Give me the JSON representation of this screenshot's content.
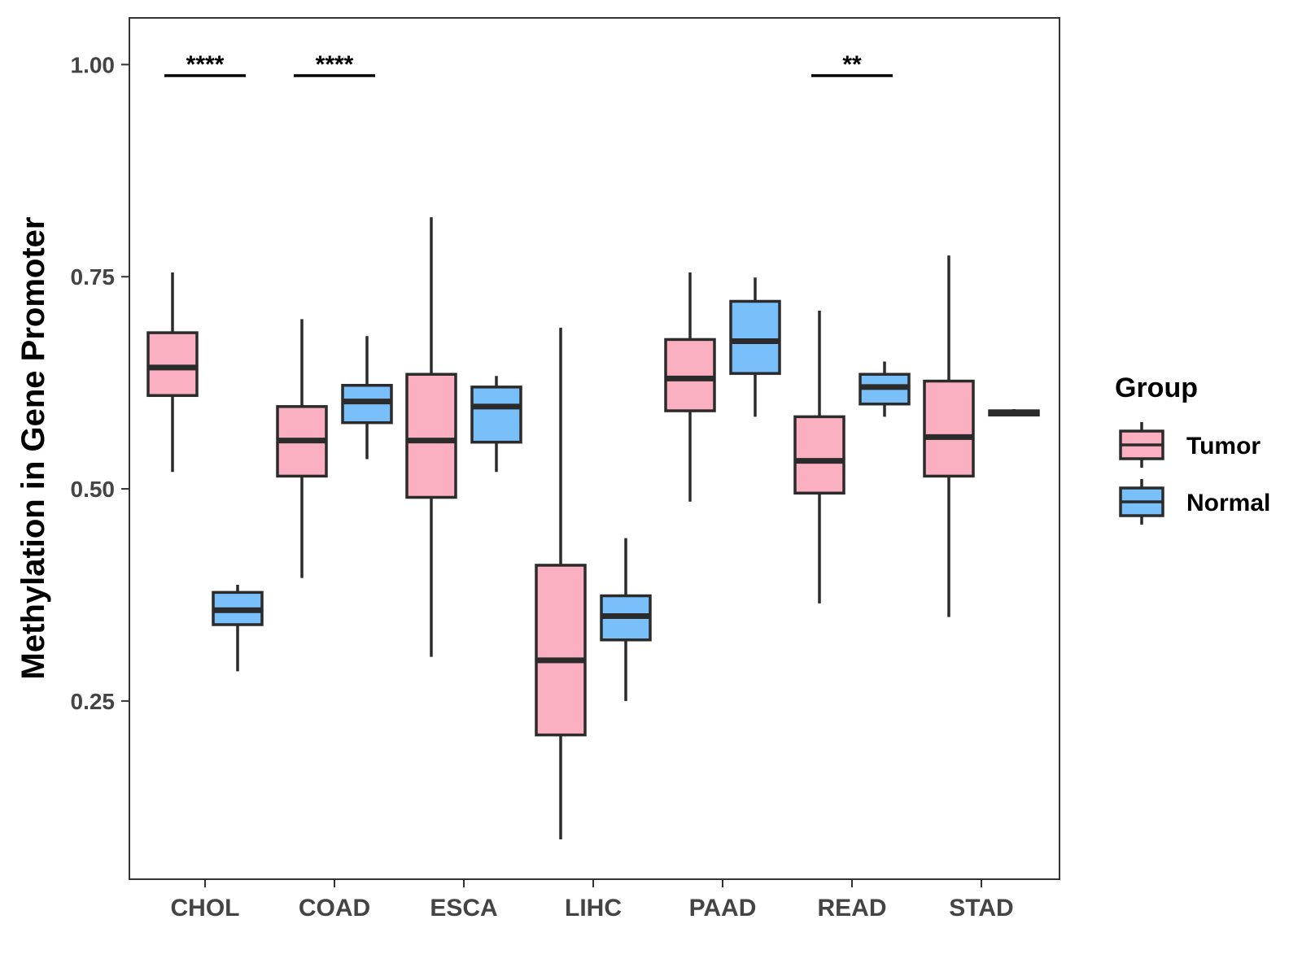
{
  "chart_data": {
    "type": "boxplot",
    "title": "",
    "xlabel": "",
    "ylabel": "Methylation in Gene Promoter",
    "ylim": [
      0.04,
      1.055
    ],
    "yticks": [
      0.25,
      0.5,
      0.75,
      1.0
    ],
    "ytick_labels": [
      "0.25",
      "0.50",
      "0.75",
      "1.00"
    ],
    "categories": [
      "CHOL",
      "COAD",
      "ESCA",
      "LIHC",
      "PAAD",
      "READ",
      "STAD"
    ],
    "legend": {
      "title": "Group",
      "position": "right",
      "entries": [
        {
          "name": "Tumor",
          "color": "#FBB0C2"
        },
        {
          "name": "Normal",
          "color": "#79C0FA"
        }
      ]
    },
    "series": [
      {
        "name": "Tumor",
        "color": "#FBB0C2",
        "boxes": [
          {
            "category": "CHOL",
            "min": 0.52,
            "q1": 0.61,
            "median": 0.643,
            "q3": 0.684,
            "max": 0.755
          },
          {
            "category": "COAD",
            "min": 0.395,
            "q1": 0.515,
            "median": 0.557,
            "q3": 0.597,
            "max": 0.7
          },
          {
            "category": "ESCA",
            "min": 0.302,
            "q1": 0.49,
            "median": 0.557,
            "q3": 0.635,
            "max": 0.82
          },
          {
            "category": "LIHC",
            "min": 0.087,
            "q1": 0.21,
            "median": 0.298,
            "q3": 0.41,
            "max": 0.69
          },
          {
            "category": "PAAD",
            "min": 0.485,
            "q1": 0.592,
            "median": 0.63,
            "q3": 0.676,
            "max": 0.755
          },
          {
            "category": "READ",
            "min": 0.365,
            "q1": 0.495,
            "median": 0.533,
            "q3": 0.585,
            "max": 0.71
          },
          {
            "category": "STAD",
            "min": 0.349,
            "q1": 0.515,
            "median": 0.561,
            "q3": 0.627,
            "max": 0.775
          }
        ]
      },
      {
        "name": "Normal",
        "color": "#79C0FA",
        "boxes": [
          {
            "category": "CHOL",
            "min": 0.285,
            "q1": 0.34,
            "median": 0.357,
            "q3": 0.378,
            "max": 0.387
          },
          {
            "category": "COAD",
            "min": 0.535,
            "q1": 0.578,
            "median": 0.603,
            "q3": 0.622,
            "max": 0.68
          },
          {
            "category": "ESCA",
            "min": 0.52,
            "q1": 0.555,
            "median": 0.597,
            "q3": 0.62,
            "max": 0.633
          },
          {
            "category": "LIHC",
            "min": 0.25,
            "q1": 0.322,
            "median": 0.35,
            "q3": 0.374,
            "max": 0.442
          },
          {
            "category": "PAAD",
            "min": 0.585,
            "q1": 0.636,
            "median": 0.674,
            "q3": 0.721,
            "max": 0.749
          },
          {
            "category": "READ",
            "min": 0.585,
            "q1": 0.6,
            "median": 0.62,
            "q3": 0.635,
            "max": 0.65
          },
          {
            "category": "STAD",
            "min": 0.587,
            "q1": 0.587,
            "median": 0.59,
            "q3": 0.592,
            "max": 0.594
          }
        ]
      }
    ],
    "significance": [
      {
        "category": "CHOL",
        "label": "****",
        "y": 0.987
      },
      {
        "category": "COAD",
        "label": "****",
        "y": 0.987
      },
      {
        "category": "READ",
        "label": "**",
        "y": 0.987
      }
    ]
  }
}
